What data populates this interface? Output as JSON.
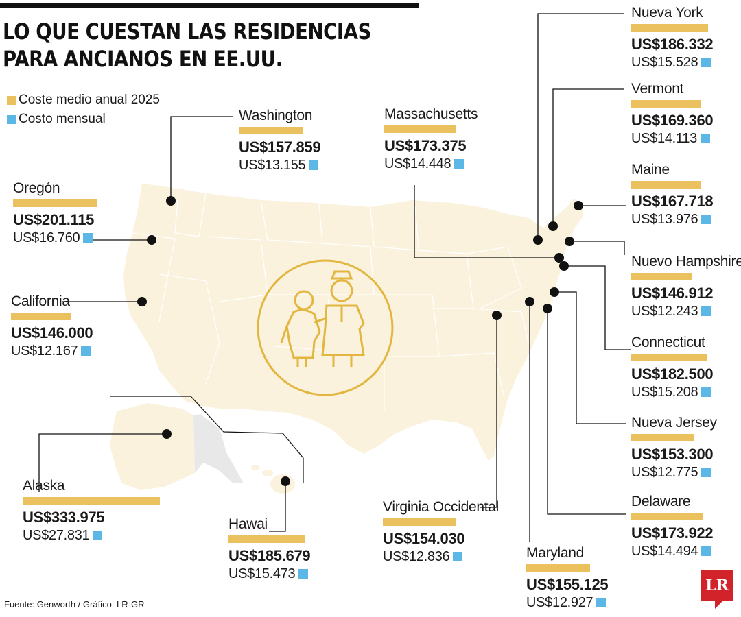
{
  "title": {
    "line1": "LO QUE CUESTAN LAS RESIDENCIAS",
    "line2": "PARA ANCIANOS EN EE.UU."
  },
  "legend": {
    "annual": "Coste medio anual 2025",
    "monthly": "Costo mensual"
  },
  "colors": {
    "annual": "#EBC05F",
    "monthly": "#5BB8E6",
    "map": "#FBF2DE",
    "icon": "#E2B63F",
    "logo": "#D2232A"
  },
  "states": [
    {
      "id": "washington",
      "name": "Washington",
      "annual": "US$157.859",
      "monthly": "US$13.155",
      "annual_value": 157859,
      "monthly_value": 13155
    },
    {
      "id": "oregon",
      "name": "Oregón",
      "annual": "US$201.115",
      "monthly": "US$16.760",
      "annual_value": 201115,
      "monthly_value": 16760
    },
    {
      "id": "california",
      "name": "California",
      "annual": "US$146.000",
      "monthly": "US$12.167",
      "annual_value": 146000,
      "monthly_value": 12167
    },
    {
      "id": "alaska",
      "name": "Alaska",
      "annual": "US$333.975",
      "monthly": "US$27.831",
      "annual_value": 333975,
      "monthly_value": 27831
    },
    {
      "id": "hawai",
      "name": "Hawai",
      "annual": "US$185.679",
      "monthly": "US$15.473",
      "annual_value": 185679,
      "monthly_value": 15473
    },
    {
      "id": "massachusetts",
      "name": "Massachusetts",
      "annual": "US$173.375",
      "monthly": "US$14.448",
      "annual_value": 173375,
      "monthly_value": 14448
    },
    {
      "id": "virginia-occidental",
      "name": "Virginia Occidental",
      "annual": "US$154.030",
      "monthly": "US$12.836",
      "annual_value": 154030,
      "monthly_value": 12836
    },
    {
      "id": "maryland",
      "name": "Maryland",
      "annual": "US$155.125",
      "monthly": "US$12.927",
      "annual_value": 155125,
      "monthly_value": 12927
    },
    {
      "id": "nueva-york",
      "name": "Nueva York",
      "annual": "US$186.332",
      "monthly": "US$15.528",
      "annual_value": 186332,
      "monthly_value": 15528
    },
    {
      "id": "vermont",
      "name": "Vermont",
      "annual": "US$169.360",
      "monthly": "US$14.113",
      "annual_value": 169360,
      "monthly_value": 14113
    },
    {
      "id": "maine",
      "name": "Maine",
      "annual": "US$167.718",
      "monthly": "US$13.976",
      "annual_value": 167718,
      "monthly_value": 13976
    },
    {
      "id": "nuevo-hampshire",
      "name": "Nuevo Hampshire",
      "annual": "US$146.912",
      "monthly": "US$12.243",
      "annual_value": 146912,
      "monthly_value": 12243
    },
    {
      "id": "connecticut",
      "name": "Connecticut",
      "annual": "US$182.500",
      "monthly": "US$15.208",
      "annual_value": 182500,
      "monthly_value": 15208
    },
    {
      "id": "nueva-jersey",
      "name": "Nueva Jersey",
      "annual": "US$153.300",
      "monthly": "US$12.775",
      "annual_value": 153300,
      "monthly_value": 12775
    },
    {
      "id": "delaware",
      "name": "Delaware",
      "annual": "US$173.922",
      "monthly": "US$14.494",
      "annual_value": 173922,
      "monthly_value": 14494
    }
  ],
  "source": "Fuente: Genworth / Gráfico: LR-GR",
  "logo": "LR",
  "icons": {
    "center": "elderly-caregiver-icon"
  }
}
